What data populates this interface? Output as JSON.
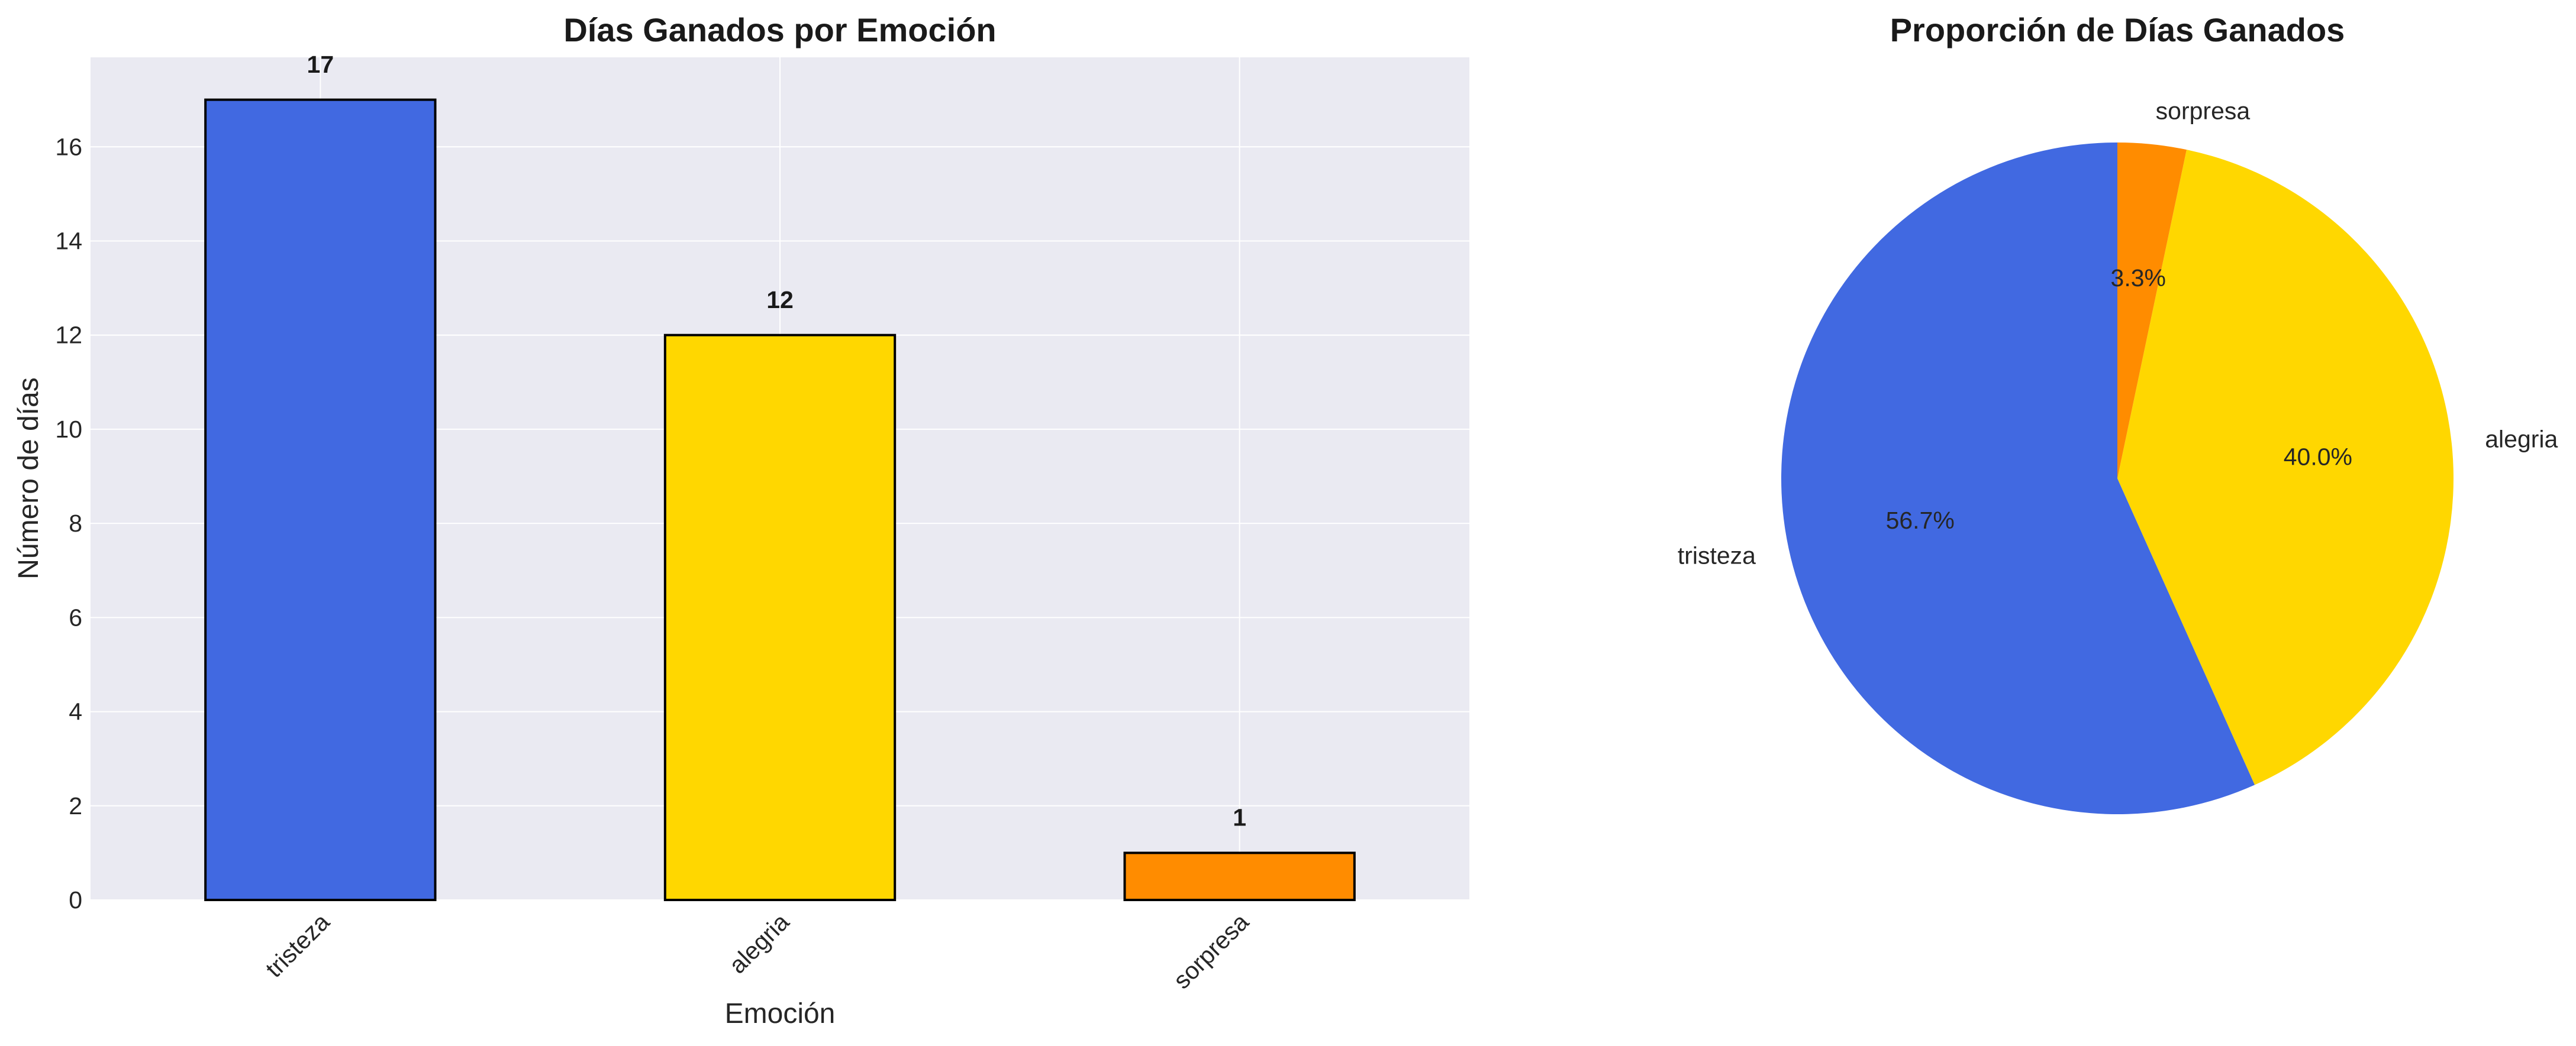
{
  "chart_data": [
    {
      "type": "bar",
      "title": "Días Ganados por Emoción",
      "xlabel": "Emoción",
      "ylabel": "Número de días",
      "categories": [
        "tristeza",
        "alegria",
        "sorpresa"
      ],
      "values": [
        17,
        12,
        1
      ],
      "value_labels": [
        "17",
        "12",
        "1"
      ],
      "colors": [
        "#4169E1",
        "#FFD700",
        "#FF8C00"
      ],
      "ylim": [
        0,
        17.9
      ],
      "yticks": [
        0,
        2,
        4,
        6,
        8,
        10,
        12,
        14,
        16
      ],
      "ytick_labels": [
        "0",
        "2",
        "4",
        "6",
        "8",
        "10",
        "12",
        "14",
        "16"
      ],
      "grid": true,
      "background": "#EAEAF2"
    },
    {
      "type": "pie",
      "title": "Proporción de Días Ganados",
      "labels": [
        "tristeza",
        "alegria",
        "sorpresa"
      ],
      "values": [
        56.7,
        40.0,
        3.3
      ],
      "pct_labels": [
        "56.7%",
        "40.0%",
        "3.3%"
      ],
      "colors": [
        "#4169E1",
        "#FFD700",
        "#FF8C00"
      ],
      "start_angle": 90,
      "direction": "counterclockwise"
    }
  ]
}
